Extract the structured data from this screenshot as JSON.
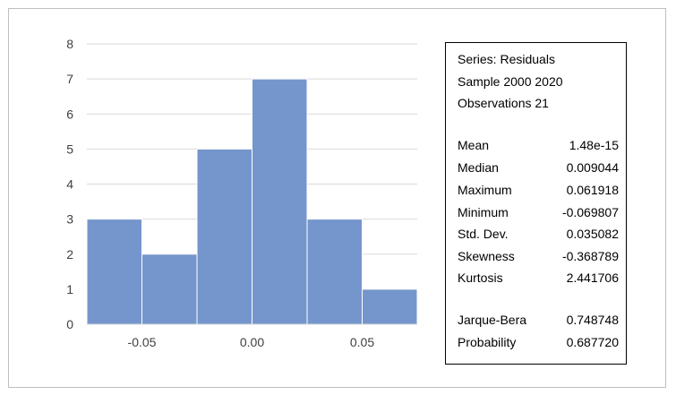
{
  "chart_data": {
    "type": "bar",
    "subtype": "histogram",
    "bin_edges": [
      -0.075,
      -0.05,
      -0.025,
      0.0,
      0.025,
      0.05,
      0.075
    ],
    "values": [
      3,
      2,
      5,
      7,
      3,
      1
    ],
    "xticks": [
      -0.05,
      0.0,
      0.05
    ],
    "xtick_labels": [
      "-0.05",
      "0.00",
      "0.05"
    ],
    "xlim": [
      -0.075,
      0.075
    ],
    "ylim": [
      0,
      8
    ],
    "yticks": [
      "0",
      "1",
      "2",
      "3",
      "4",
      "5",
      "6",
      "7",
      "8"
    ],
    "grid": true,
    "bar_color": "#7596cc",
    "title": "",
    "xlabel": "",
    "ylabel": ""
  },
  "stats_box": {
    "header": [
      "Series: Residuals",
      "Sample 2000 2020",
      "Observations 21"
    ],
    "descriptive": [
      {
        "label": "Mean",
        "value": "1.48e-15"
      },
      {
        "label": "Median",
        "value": "0.009044"
      },
      {
        "label": "Maximum",
        "value": "0.061918"
      },
      {
        "label": "Minimum",
        "value": "-0.069807"
      },
      {
        "label": "Std. Dev.",
        "value": "0.035082"
      },
      {
        "label": "Skewness",
        "value": "-0.368789"
      },
      {
        "label": "Kurtosis",
        "value": "2.441706"
      }
    ],
    "tests": [
      {
        "label": "Jarque-Bera",
        "value": "0.748748"
      },
      {
        "label": "Probability",
        "value": "0.687720"
      }
    ]
  }
}
